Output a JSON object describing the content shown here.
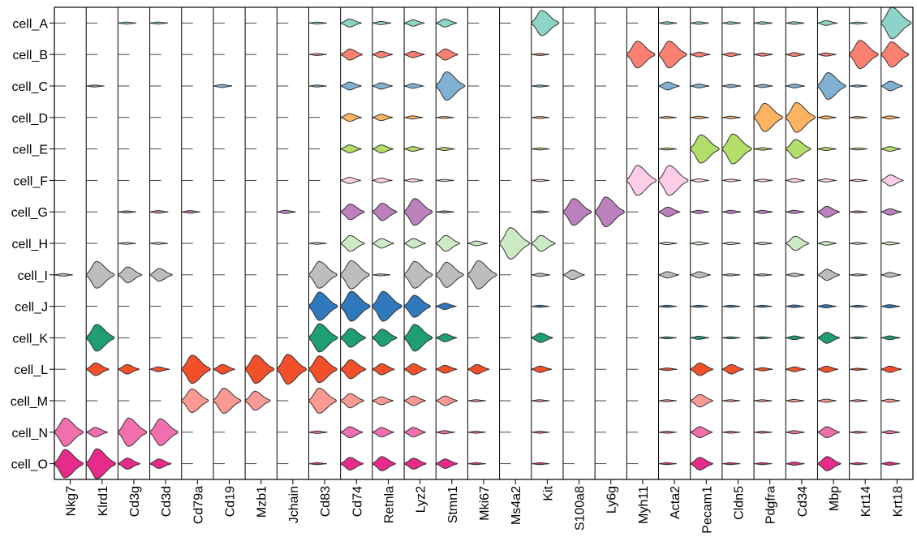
{
  "chart_data": {
    "type": "stacked_violin",
    "title": "",
    "xlabel": "",
    "ylabel": "",
    "genes": [
      "Nkg7",
      "Klrd1",
      "Cd3g",
      "Cd3d",
      "Cd79a",
      "Cd19",
      "Mzb1",
      "Jchain",
      "Cd83",
      "Cd74",
      "Retnla",
      "Lyz2",
      "Stmn1",
      "Mki67",
      "Ms4a2",
      "Kit",
      "S100a8",
      "Ly6g",
      "Myh11",
      "Acta2",
      "Pecam1",
      "Cldn5",
      "Pdgfra",
      "Cd34",
      "Mbp",
      "Krt14",
      "Krt18"
    ],
    "cells": [
      {
        "name": "cell_A",
        "color": "#8dd3c7",
        "values": [
          0.02,
          0.02,
          0.06,
          0.06,
          0.02,
          0.02,
          0.02,
          0.02,
          0.05,
          0.25,
          0.1,
          0.2,
          0.25,
          0.02,
          0.02,
          0.8,
          0.02,
          0.02,
          0.02,
          0.08,
          0.08,
          0.08,
          0.08,
          0.08,
          0.15,
          0.05,
          1.0
        ]
      },
      {
        "name": "cell_B",
        "color": "#fb8072",
        "values": [
          0.02,
          0.02,
          0.03,
          0.03,
          0.02,
          0.02,
          0.02,
          0.02,
          0.04,
          0.35,
          0.2,
          0.2,
          0.35,
          0.02,
          0.02,
          0.05,
          0.02,
          0.02,
          0.85,
          0.85,
          0.15,
          0.12,
          0.1,
          0.12,
          0.1,
          0.9,
          0.8
        ]
      },
      {
        "name": "cell_C",
        "color": "#80b1d3",
        "values": [
          0.02,
          0.05,
          0.02,
          0.02,
          0.02,
          0.1,
          0.02,
          0.02,
          0.04,
          0.25,
          0.2,
          0.15,
          0.9,
          0.02,
          0.02,
          0.05,
          0.02,
          0.02,
          0.02,
          0.25,
          0.12,
          0.1,
          0.1,
          0.12,
          0.85,
          0.05,
          0.3
        ]
      },
      {
        "name": "cell_D",
        "color": "#fdb462",
        "values": [
          0.02,
          0.02,
          0.02,
          0.02,
          0.02,
          0.02,
          0.02,
          0.02,
          0.02,
          0.25,
          0.2,
          0.1,
          0.05,
          0.02,
          0.02,
          0.05,
          0.02,
          0.02,
          0.02,
          0.05,
          0.08,
          0.08,
          0.9,
          0.95,
          0.1,
          0.05,
          0.1
        ]
      },
      {
        "name": "cell_E",
        "color": "#b3de69",
        "values": [
          0.02,
          0.02,
          0.02,
          0.02,
          0.02,
          0.02,
          0.02,
          0.02,
          0.02,
          0.25,
          0.25,
          0.15,
          0.1,
          0.02,
          0.02,
          0.05,
          0.02,
          0.02,
          0.02,
          0.05,
          0.9,
          0.95,
          0.08,
          0.6,
          0.1,
          0.05,
          0.15
        ]
      },
      {
        "name": "cell_F",
        "color": "#fccde5",
        "values": [
          0.02,
          0.02,
          0.02,
          0.02,
          0.02,
          0.02,
          0.02,
          0.02,
          0.02,
          0.2,
          0.15,
          0.1,
          0.05,
          0.02,
          0.02,
          0.05,
          0.02,
          0.02,
          0.95,
          0.95,
          0.1,
          0.08,
          0.08,
          0.12,
          0.1,
          0.05,
          0.35
        ]
      },
      {
        "name": "cell_G",
        "color": "#bc80bd",
        "values": [
          0.02,
          0.02,
          0.05,
          0.08,
          0.08,
          0.02,
          0.02,
          0.1,
          0.02,
          0.5,
          0.55,
          0.85,
          0.05,
          0.02,
          0.02,
          0.05,
          0.85,
          0.95,
          0.02,
          0.3,
          0.1,
          0.1,
          0.1,
          0.1,
          0.35,
          0.05,
          0.2
        ]
      },
      {
        "name": "cell_H",
        "color": "#ccebc5",
        "values": [
          0.02,
          0.02,
          0.05,
          0.05,
          0.02,
          0.02,
          0.02,
          0.02,
          0.04,
          0.5,
          0.3,
          0.3,
          0.5,
          0.15,
          1.0,
          0.5,
          0.02,
          0.02,
          0.02,
          0.08,
          0.1,
          0.08,
          0.08,
          0.45,
          0.12,
          0.05,
          0.1
        ]
      },
      {
        "name": "cell_I",
        "color": "#bdbdbd",
        "values": [
          0.08,
          0.85,
          0.5,
          0.4,
          0.02,
          0.02,
          0.02,
          0.02,
          0.85,
          0.9,
          0.05,
          0.85,
          0.8,
          0.9,
          0.02,
          0.1,
          0.3,
          0.02,
          0.02,
          0.2,
          0.2,
          0.05,
          0.05,
          0.1,
          0.35,
          0.05,
          0.15
        ]
      },
      {
        "name": "cell_J",
        "color": "#2f78bd",
        "values": [
          0.02,
          0.02,
          0.02,
          0.02,
          0.02,
          0.02,
          0.02,
          0.02,
          0.9,
          0.95,
          0.95,
          0.7,
          0.2,
          0.02,
          0.02,
          0.05,
          0.02,
          0.02,
          0.02,
          0.05,
          0.05,
          0.05,
          0.05,
          0.08,
          0.1,
          0.05,
          0.1
        ]
      },
      {
        "name": "cell_K",
        "color": "#1f9d73",
        "values": [
          0.02,
          0.85,
          0.02,
          0.02,
          0.02,
          0.02,
          0.02,
          0.02,
          0.9,
          0.6,
          0.55,
          0.85,
          0.25,
          0.02,
          0.02,
          0.3,
          0.02,
          0.02,
          0.02,
          0.05,
          0.1,
          0.05,
          0.05,
          0.12,
          0.35,
          0.05,
          0.12
        ]
      },
      {
        "name": "cell_L",
        "color": "#f2502a",
        "values": [
          0.02,
          0.4,
          0.3,
          0.15,
          0.9,
          0.3,
          0.9,
          0.95,
          0.85,
          0.6,
          0.35,
          0.35,
          0.25,
          0.3,
          0.02,
          0.2,
          0.02,
          0.02,
          0.02,
          0.08,
          0.4,
          0.3,
          0.1,
          0.15,
          0.2,
          0.05,
          0.2
        ]
      },
      {
        "name": "cell_M",
        "color": "#fb9a92",
        "values": [
          0.02,
          0.02,
          0.02,
          0.02,
          0.75,
          0.8,
          0.6,
          0.02,
          0.8,
          0.45,
          0.25,
          0.3,
          0.3,
          0.05,
          0.02,
          0.05,
          0.02,
          0.02,
          0.02,
          0.05,
          0.4,
          0.05,
          0.05,
          0.08,
          0.1,
          0.05,
          0.1
        ]
      },
      {
        "name": "cell_N",
        "color": "#f26fae",
        "values": [
          0.9,
          0.3,
          0.9,
          0.85,
          0.02,
          0.02,
          0.02,
          0.02,
          0.08,
          0.35,
          0.3,
          0.3,
          0.1,
          0.05,
          0.02,
          0.05,
          0.02,
          0.02,
          0.02,
          0.05,
          0.35,
          0.05,
          0.05,
          0.1,
          0.35,
          0.05,
          0.1
        ]
      },
      {
        "name": "cell_O",
        "color": "#e62b8a",
        "values": [
          0.9,
          0.95,
          0.35,
          0.3,
          0.02,
          0.02,
          0.02,
          0.02,
          0.05,
          0.4,
          0.45,
          0.35,
          0.3,
          0.05,
          0.02,
          0.05,
          0.02,
          0.02,
          0.02,
          0.05,
          0.4,
          0.05,
          0.05,
          0.1,
          0.45,
          0.05,
          0.1
        ]
      }
    ]
  }
}
